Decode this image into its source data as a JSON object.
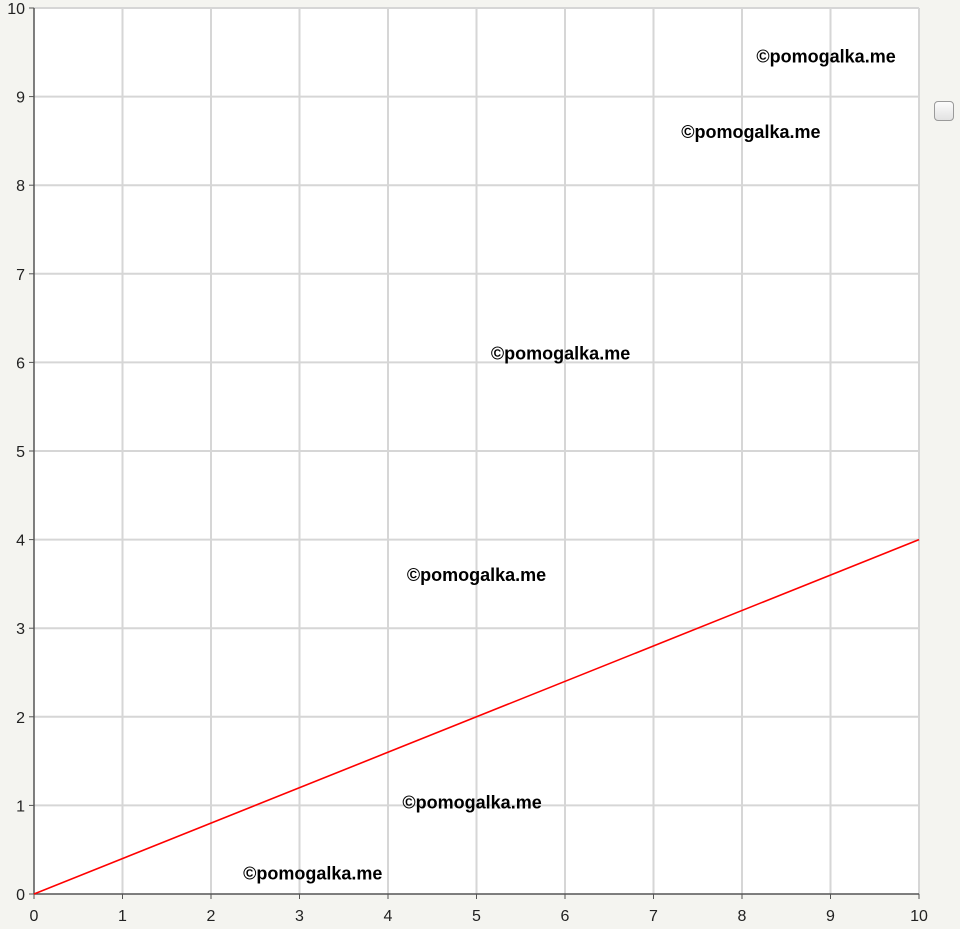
{
  "chart_data": {
    "type": "line",
    "title": "",
    "xlabel": "",
    "ylabel": "",
    "xlim": [
      0,
      10
    ],
    "ylim": [
      0,
      10
    ],
    "grid": true,
    "x_ticks": [
      "0",
      "1",
      "2",
      "3",
      "4",
      "5",
      "6",
      "7",
      "8",
      "9",
      "10"
    ],
    "y_ticks": [
      "0",
      "1",
      "2",
      "3",
      "4",
      "5",
      "6",
      "7",
      "8",
      "9",
      "10"
    ],
    "series": [
      {
        "color": "#ff0000",
        "x": [
          0,
          10
        ],
        "y": [
          0,
          4
        ]
      }
    ],
    "colors": {
      "background": "#ffffff",
      "grid": "#d6d6d6",
      "axis": "#555555"
    }
  },
  "watermarks": [
    {
      "text": "©pomogalka.me",
      "x": 8.95,
      "y": 9.45
    },
    {
      "text": "©pomogalka.me",
      "x": 8.1,
      "y": 8.6
    },
    {
      "text": "©pomogalka.me",
      "x": 5.95,
      "y": 6.1
    },
    {
      "text": "©pomogalka.me",
      "x": 5.0,
      "y": 3.6
    },
    {
      "text": "©pomogalka.me",
      "x": 4.95,
      "y": 1.03
    },
    {
      "text": "©pomogalka.me",
      "x": 3.15,
      "y": 0.23
    }
  ],
  "legend": {
    "checkbox_checked": false
  }
}
